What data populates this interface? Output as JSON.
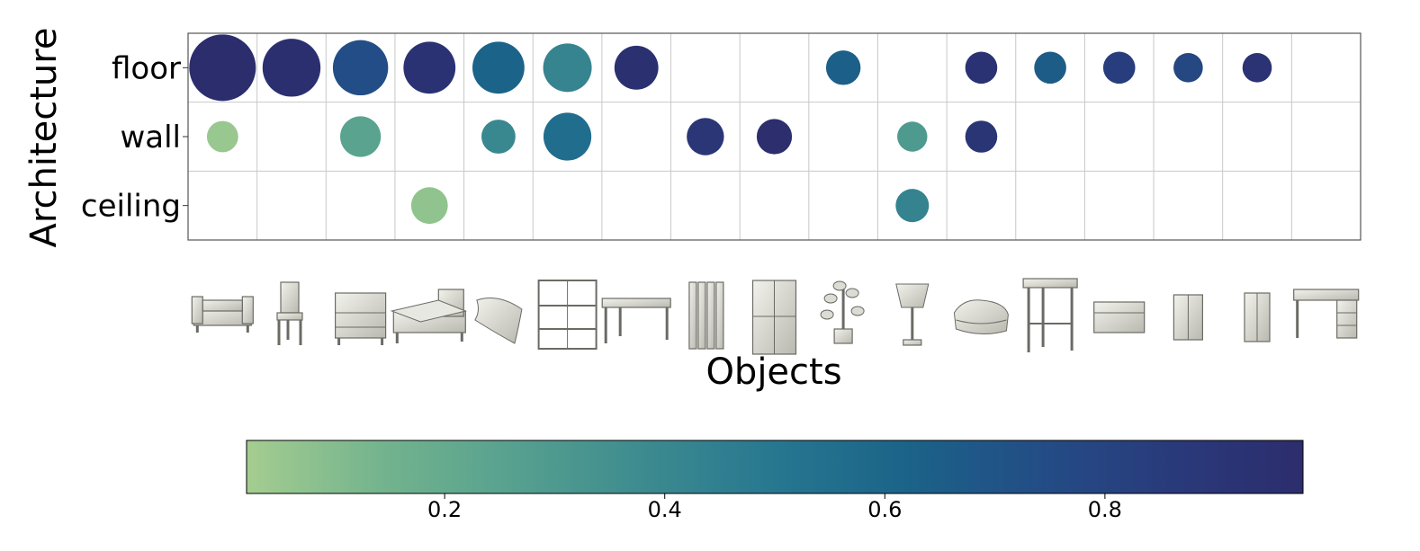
{
  "chart_data": {
    "type": "scatter",
    "ylabel": "Architecture",
    "xlabel": "Objects",
    "rows": [
      "floor",
      "wall",
      "ceiling"
    ],
    "object_icons": [
      "sofa-icon",
      "chair-icon",
      "nightstand-icon",
      "bed-icon",
      "pillow-icon",
      "shelf-rack-icon",
      "desk-icon",
      "curtain-icon",
      "window-icon",
      "plant-icon",
      "lamp-icon",
      "blanket-icon",
      "stool-icon",
      "cabinet-icon",
      "box-icon",
      "wardrobe-icon",
      "desk-drawers-icon"
    ],
    "grid": true,
    "points": [
      {
        "row": 0,
        "col": 0,
        "size": 1.0,
        "value": 0.98
      },
      {
        "row": 0,
        "col": 1,
        "size": 0.87,
        "value": 0.96
      },
      {
        "row": 0,
        "col": 2,
        "size": 0.83,
        "value": 0.74
      },
      {
        "row": 0,
        "col": 3,
        "size": 0.78,
        "value": 0.93
      },
      {
        "row": 0,
        "col": 4,
        "size": 0.78,
        "value": 0.62
      },
      {
        "row": 0,
        "col": 5,
        "size": 0.73,
        "value": 0.42
      },
      {
        "row": 0,
        "col": 6,
        "size": 0.66,
        "value": 0.95
      },
      {
        "row": 0,
        "col": 9,
        "size": 0.52,
        "value": 0.64
      },
      {
        "row": 0,
        "col": 11,
        "size": 0.48,
        "value": 0.93
      },
      {
        "row": 0,
        "col": 12,
        "size": 0.48,
        "value": 0.66
      },
      {
        "row": 0,
        "col": 13,
        "size": 0.48,
        "value": 0.84
      },
      {
        "row": 0,
        "col": 14,
        "size": 0.44,
        "value": 0.78
      },
      {
        "row": 0,
        "col": 15,
        "size": 0.44,
        "value": 0.92
      },
      {
        "row": 1,
        "col": 0,
        "size": 0.47,
        "value": 0.05
      },
      {
        "row": 1,
        "col": 2,
        "size": 0.61,
        "value": 0.25
      },
      {
        "row": 1,
        "col": 4,
        "size": 0.51,
        "value": 0.4
      },
      {
        "row": 1,
        "col": 5,
        "size": 0.72,
        "value": 0.56
      },
      {
        "row": 1,
        "col": 7,
        "size": 0.56,
        "value": 0.9
      },
      {
        "row": 1,
        "col": 8,
        "size": 0.53,
        "value": 0.97
      },
      {
        "row": 1,
        "col": 10,
        "size": 0.45,
        "value": 0.3
      },
      {
        "row": 1,
        "col": 11,
        "size": 0.48,
        "value": 0.91
      },
      {
        "row": 2,
        "col": 3,
        "size": 0.55,
        "value": 0.07
      },
      {
        "row": 2,
        "col": 10,
        "size": 0.5,
        "value": 0.43
      }
    ],
    "colorbar": {
      "colormap": "crest",
      "range": [
        0.02,
        0.98
      ],
      "ticks": [
        0.2,
        0.4,
        0.6,
        0.8
      ],
      "tick_labels": [
        "0.2",
        "0.4",
        "0.6",
        "0.8"
      ],
      "colors": [
        "#a5cd90",
        "#74b48e",
        "#57a18f",
        "#3d8b8f",
        "#277790",
        "#1b6389",
        "#234d86",
        "#293a7b",
        "#2c2d6d"
      ]
    }
  }
}
